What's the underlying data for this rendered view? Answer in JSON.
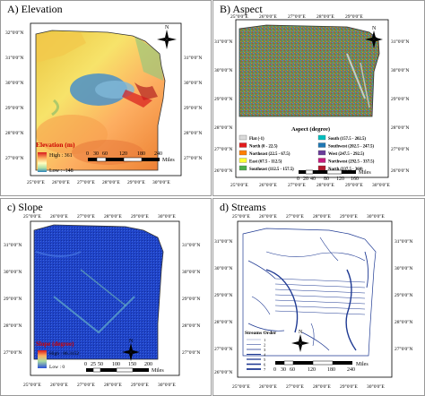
{
  "panels": {
    "a": {
      "title": "A) Elevation",
      "legend_title": "Elevation (m)",
      "high_label": "High : 361",
      "low_label": "Low : -148",
      "scale_ticks": [
        "0",
        "30",
        "60",
        "120",
        "180",
        "240"
      ],
      "scale_unit": "Miles",
      "lat_labels": [
        "32°0'0\"N",
        "31°0'0\"N",
        "30°0'0\"N",
        "29°0'0\"N",
        "28°0'0\"N",
        "27°0'0\"N",
        "26°0'0\"N"
      ],
      "lon_labels": [
        "25°0'0\"E",
        "26°0'0\"E",
        "27°0'0\"E",
        "28°0'0\"E",
        "29°0'0\"E",
        "30°0'0\"E",
        "31°0'0\"E"
      ]
    },
    "b": {
      "title": "B) Aspect",
      "legend_title": "Aspect (degree)",
      "legend_items_left": [
        {
          "label": "Flat (-1)",
          "color": "#d9d9d9"
        },
        {
          "label": "North (0 - 22.5)",
          "color": "#e31a1c"
        },
        {
          "label": "Northeast (22.5 - 67.5)",
          "color": "#ff7f00"
        },
        {
          "label": "East (67.5 - 112.5)",
          "color": "#ffff33"
        },
        {
          "label": "Southeast (112.5 - 157.5)",
          "color": "#4daf4a"
        }
      ],
      "legend_items_right": [
        {
          "label": "South (157.5 - 202.5)",
          "color": "#00bfbf"
        },
        {
          "label": "Southwest (202.5 - 247.5)",
          "color": "#1f78b4"
        },
        {
          "label": "West (247.5 - 292.5)",
          "color": "#6a3d9a"
        },
        {
          "label": "Northwest (292.5 - 337.5)",
          "color": "#c51b7d"
        },
        {
          "label": "North (337.5 - 360)",
          "color": "#b2182b"
        }
      ],
      "scale_ticks": [
        "0",
        "20",
        "40",
        "80",
        "120",
        "160"
      ],
      "scale_unit": "Miles",
      "lat_labels": [
        "31°0'0\"N",
        "30°0'0\"N",
        "29°0'0\"N",
        "28°0'0\"N",
        "27°0'0\"N",
        "26°0'0\"N"
      ],
      "lon_labels": [
        "25°0'0\"E",
        "26°0'0\"E",
        "27°0'0\"E",
        "28°0'0\"E",
        "29°0'0\"E",
        "30°0'0\"E"
      ]
    },
    "c": {
      "title": "c) Slope",
      "legend_title": "Slope (degree)",
      "high_label": "High : 86.3152",
      "low_label": "Low : 0",
      "scale_ticks": [
        "0",
        "25",
        "50",
        "100",
        "150",
        "200"
      ],
      "scale_unit": "Miles",
      "lat_labels": [
        "31°0'0\"N",
        "30°0'0\"N",
        "29°0'0\"N",
        "28°0'0\"N",
        "27°0'0\"N"
      ],
      "lon_labels": [
        "25°0'0\"E",
        "26°0'0\"E",
        "27°0'0\"E",
        "28°0'0\"E",
        "29°0'0\"E",
        "30°0'0\"E",
        "31°0'0\"E"
      ]
    },
    "d": {
      "title": "d) Streams",
      "legend_title": "Streams Order",
      "stream_orders": [
        "1",
        "2",
        "3",
        "4",
        "5",
        "6",
        "7"
      ],
      "scale_ticks": [
        "0",
        "30",
        "60",
        "120",
        "180",
        "240"
      ],
      "scale_unit": "Miles",
      "lat_labels": [
        "31°0'0\"N",
        "30°0'0\"N",
        "29°0'0\"N",
        "28°0'0\"N",
        "27°0'0\"N",
        "26°0'0\"N"
      ],
      "lon_labels": [
        "25°0'0\"E",
        "26°0'0\"E",
        "27°0'0\"E",
        "28°0'0\"E",
        "29°0'0\"E",
        "30°0'0\"E",
        "31°0'0\"E"
      ]
    }
  },
  "north_arrow_label": "N",
  "colors": {
    "elevation_high": "#d7191c",
    "elevation_mid": "#fdae61",
    "elevation_low": "#2b83ba",
    "slope_base": "#1a3fc4",
    "stream_blue": "#1f3a93"
  }
}
